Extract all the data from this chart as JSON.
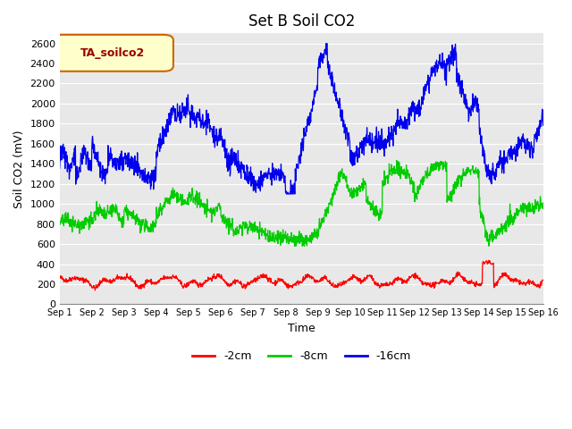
{
  "title": "Set B Soil CO2",
  "ylabel": "Soil CO2 (mV)",
  "xlabel": "Time",
  "ylim": [
    0,
    2700
  ],
  "xlim": [
    0,
    15
  ],
  "xtick_labels": [
    "Sep 1",
    "Sep 2",
    "Sep 3",
    "Sep 4",
    "Sep 5",
    "Sep 6",
    "Sep 7",
    "Sep 8",
    "Sep 9",
    "Sep 10",
    "Sep 11",
    "Sep 12",
    "Sep 13",
    "Sep 14",
    "Sep 15",
    "Sep 16"
  ],
  "ytick_values": [
    0,
    200,
    400,
    600,
    800,
    1000,
    1200,
    1400,
    1600,
    1800,
    2000,
    2200,
    2400,
    2600
  ],
  "colors": {
    "red": "#FF0000",
    "green": "#00CC00",
    "blue": "#0000EE"
  },
  "legend_box_label": "TA_soilco2",
  "legend_box_bg": "#FFFFCC",
  "legend_box_edge": "#CC6600",
  "plot_bg": "#E8E8E8",
  "fig_bg": "#FFFFFF",
  "line_labels": [
    "-2cm",
    "-8cm",
    "-16cm"
  ],
  "title_fontsize": 12,
  "label_fontsize": 9
}
